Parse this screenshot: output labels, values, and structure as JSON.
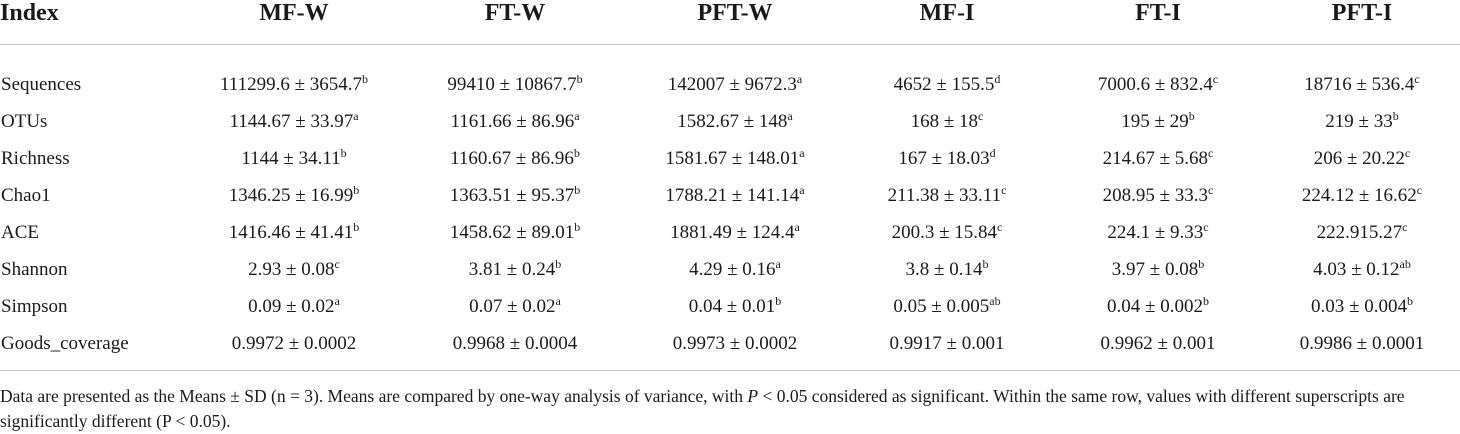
{
  "table": {
    "headers": [
      "Index",
      "MF-W",
      "FT-W",
      "PFT-W",
      "MF-I",
      "FT-I",
      "PFT-I"
    ],
    "rows": [
      {
        "label": "Sequences",
        "cells": [
          {
            "v": "111299.6 ± 3654.7",
            "s": "b"
          },
          {
            "v": "99410 ± 10867.7",
            "s": "b"
          },
          {
            "v": "142007 ± 9672.3",
            "s": "a"
          },
          {
            "v": "4652 ± 155.5",
            "s": "d"
          },
          {
            "v": "7000.6 ± 832.4",
            "s": "c"
          },
          {
            "v": "18716 ± 536.4",
            "s": "c"
          }
        ]
      },
      {
        "label": "OTUs",
        "cells": [
          {
            "v": "1144.67 ± 33.97",
            "s": "a"
          },
          {
            "v": "1161.66 ± 86.96",
            "s": "a"
          },
          {
            "v": "1582.67 ± 148",
            "s": "a"
          },
          {
            "v": "168 ± 18",
            "s": "c"
          },
          {
            "v": "195 ± 29",
            "s": "b"
          },
          {
            "v": "219 ± 33",
            "s": "b"
          }
        ]
      },
      {
        "label": "Richness",
        "cells": [
          {
            "v": "1144 ± 34.11",
            "s": "b"
          },
          {
            "v": "1160.67 ± 86.96",
            "s": "b"
          },
          {
            "v": "1581.67 ± 148.01",
            "s": "a"
          },
          {
            "v": "167 ± 18.03",
            "s": "d"
          },
          {
            "v": "214.67 ± 5.68",
            "s": "c"
          },
          {
            "v": "206 ± 20.22",
            "s": "c"
          }
        ]
      },
      {
        "label": "Chao1",
        "cells": [
          {
            "v": "1346.25 ± 16.99",
            "s": "b"
          },
          {
            "v": "1363.51 ± 95.37",
            "s": "b"
          },
          {
            "v": "1788.21 ± 141.14",
            "s": "a"
          },
          {
            "v": "211.38 ± 33.11",
            "s": "c"
          },
          {
            "v": "208.95 ± 33.3",
            "s": "c"
          },
          {
            "v": "224.12 ± 16.62",
            "s": "c"
          }
        ]
      },
      {
        "label": "ACE",
        "cells": [
          {
            "v": "1416.46 ± 41.41",
            "s": "b"
          },
          {
            "v": "1458.62 ± 89.01",
            "s": "b"
          },
          {
            "v": "1881.49 ± 124.4",
            "s": "a"
          },
          {
            "v": "200.3 ± 15.84",
            "s": "c"
          },
          {
            "v": "224.1 ± 9.33",
            "s": "c"
          },
          {
            "v": "222.915.27",
            "s": "c"
          }
        ]
      },
      {
        "label": "Shannon",
        "cells": [
          {
            "v": "2.93 ± 0.08",
            "s": "c"
          },
          {
            "v": "3.81 ± 0.24",
            "s": "b"
          },
          {
            "v": "4.29 ± 0.16",
            "s": "a"
          },
          {
            "v": "3.8 ± 0.14",
            "s": "b"
          },
          {
            "v": "3.97 ± 0.08",
            "s": "b"
          },
          {
            "v": "4.03 ± 0.12",
            "s": "ab"
          }
        ]
      },
      {
        "label": "Simpson",
        "cells": [
          {
            "v": "0.09 ± 0.02",
            "s": "a"
          },
          {
            "v": "0.07 ± 0.02",
            "s": "a"
          },
          {
            "v": "0.04 ± 0.01",
            "s": "b"
          },
          {
            "v": "0.05 ± 0.005",
            "s": "ab"
          },
          {
            "v": "0.04 ± 0.002",
            "s": "b"
          },
          {
            "v": "0.03 ± 0.004",
            "s": "b"
          }
        ]
      },
      {
        "label": "Goods_coverage",
        "cells": [
          {
            "v": "0.9972 ± 0.0002",
            "s": ""
          },
          {
            "v": "0.9968 ± 0.0004",
            "s": ""
          },
          {
            "v": "0.9973 ± 0.0002",
            "s": ""
          },
          {
            "v": "0.9917 ± 0.001",
            "s": ""
          },
          {
            "v": "0.9962 ± 0.001",
            "s": ""
          },
          {
            "v": "0.9986 ± 0.0001",
            "s": ""
          }
        ]
      }
    ]
  },
  "note": {
    "part1": "Data are presented as the Means ± SD (n = 3). Means are compared by one-way analysis of variance, with ",
    "italic": "P",
    "part2": " < 0.05 considered as significant. Within the same row, values with different superscripts are significantly different (P < 0.05)."
  }
}
